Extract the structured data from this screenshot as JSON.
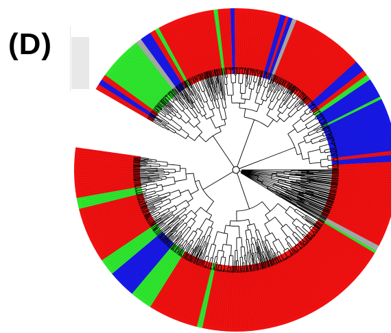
{
  "panel_label": "(D)",
  "colors": {
    "red": "#f01010",
    "green": "#2ee62e",
    "blue": "#1818e6",
    "gray": "#a8a8a8",
    "branch": "#000000",
    "background": "#ffffff"
  },
  "tree": {
    "layout": "circular",
    "gap_start_deg": 188,
    "gap_end_deg": 210,
    "clade_color_segments": [
      {
        "start_deg": 210,
        "end_deg": 212,
        "color": "red"
      },
      {
        "start_deg": 212,
        "end_deg": 214,
        "color": "blue"
      },
      {
        "start_deg": 214,
        "end_deg": 216,
        "color": "red"
      },
      {
        "start_deg": 216,
        "end_deg": 232,
        "color": "green"
      },
      {
        "start_deg": 232,
        "end_deg": 234,
        "color": "gray"
      },
      {
        "start_deg": 234,
        "end_deg": 238,
        "color": "blue"
      },
      {
        "start_deg": 238,
        "end_deg": 240,
        "color": "red"
      },
      {
        "start_deg": 240,
        "end_deg": 241.5,
        "color": "green"
      },
      {
        "start_deg": 241.5,
        "end_deg": 262,
        "color": "red"
      },
      {
        "start_deg": 262,
        "end_deg": 263.5,
        "color": "green"
      },
      {
        "start_deg": 263.5,
        "end_deg": 268,
        "color": "red"
      },
      {
        "start_deg": 268,
        "end_deg": 269.5,
        "color": "blue"
      },
      {
        "start_deg": 269.5,
        "end_deg": 286,
        "color": "red"
      },
      {
        "start_deg": 286,
        "end_deg": 288,
        "color": "blue"
      },
      {
        "start_deg": 288,
        "end_deg": 289,
        "color": "red"
      },
      {
        "start_deg": 289,
        "end_deg": 290.5,
        "color": "blue"
      },
      {
        "start_deg": 290.5,
        "end_deg": 292,
        "color": "gray"
      },
      {
        "start_deg": 292,
        "end_deg": 318,
        "color": "red"
      },
      {
        "start_deg": 318,
        "end_deg": 322,
        "color": "blue"
      },
      {
        "start_deg": 322,
        "end_deg": 324,
        "color": "red"
      },
      {
        "start_deg": 324,
        "end_deg": 326,
        "color": "green"
      },
      {
        "start_deg": 326,
        "end_deg": 333,
        "color": "blue"
      },
      {
        "start_deg": 333,
        "end_deg": 334,
        "color": "green"
      },
      {
        "start_deg": 334,
        "end_deg": 353,
        "color": "blue"
      },
      {
        "start_deg": 353,
        "end_deg": 354.5,
        "color": "red"
      },
      {
        "start_deg": 354.5,
        "end_deg": 357,
        "color": "blue"
      },
      {
        "start_deg": 357,
        "end_deg": 388,
        "color": "red"
      },
      {
        "start_deg": 388,
        "end_deg": 390,
        "color": "gray"
      },
      {
        "start_deg": 390,
        "end_deg": 391,
        "color": "green"
      },
      {
        "start_deg": 391,
        "end_deg": 462,
        "color": "red"
      },
      {
        "start_deg": 462,
        "end_deg": 464,
        "color": "green"
      },
      {
        "start_deg": 464,
        "end_deg": 482,
        "color": "red"
      },
      {
        "start_deg": 482,
        "end_deg": 490,
        "color": "green"
      },
      {
        "start_deg": 490,
        "end_deg": 500,
        "color": "blue"
      },
      {
        "start_deg": 500,
        "end_deg": 506,
        "color": "green"
      },
      {
        "start_deg": 506,
        "end_deg": 526,
        "color": "red"
      },
      {
        "start_deg": 526,
        "end_deg": 530,
        "color": "green"
      },
      {
        "start_deg": 530,
        "end_deg": 548,
        "color": "red"
      }
    ]
  }
}
